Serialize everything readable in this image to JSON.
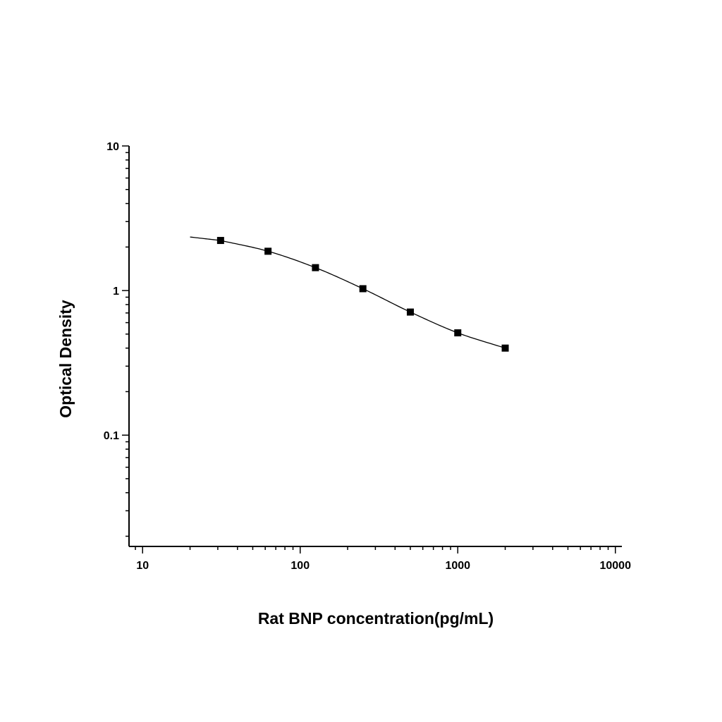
{
  "chart_data": {
    "type": "scatter",
    "title": "",
    "xlabel": "Rat BNP concentration(pg/mL)",
    "ylabel": "Optical Density",
    "x_scale": "log",
    "y_scale": "log",
    "xlim": [
      8.2,
      11000
    ],
    "ylim": [
      0.017,
      10
    ],
    "x_ticks": [
      {
        "value": 10,
        "label": "10"
      },
      {
        "value": 100,
        "label": "100"
      },
      {
        "value": 1000,
        "label": "1000"
      },
      {
        "value": 10000,
        "label": "10000"
      }
    ],
    "y_ticks": [
      {
        "value": 10,
        "label": "10"
      },
      {
        "value": 1,
        "label": "1"
      },
      {
        "value": 0.1,
        "label": "0.1"
      }
    ],
    "grid": false,
    "legend": "none",
    "series": [
      {
        "x": [
          31.25,
          62.5,
          125,
          250,
          500,
          1000,
          2000
        ],
        "y": [
          2.22,
          1.87,
          1.44,
          1.03,
          0.71,
          0.51,
          0.4
        ],
        "marker": "square",
        "color": "#000000"
      }
    ],
    "fit_curve": {
      "x_range": [
        20,
        2000
      ],
      "color": "#000000"
    }
  }
}
